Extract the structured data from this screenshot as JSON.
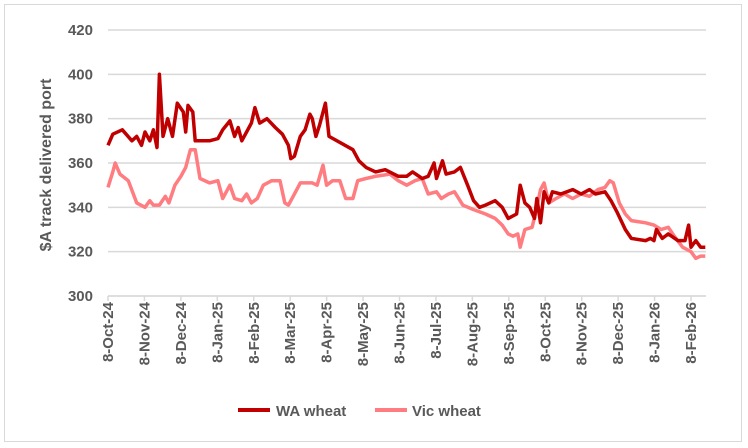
{
  "chart_data": {
    "type": "line",
    "title": "",
    "xlabel": "",
    "ylabel": "$A track delivered port",
    "ylim": [
      300,
      420
    ],
    "yticks": [
      300,
      320,
      340,
      360,
      380,
      400,
      420
    ],
    "xticks": [
      "8-Oct-24",
      "8-Nov-24",
      "8-Dec-24",
      "8-Jan-25",
      "8-Feb-25",
      "8-Mar-25",
      "8-Apr-25",
      "8-May-25",
      "8-Jun-25",
      "8-Jul-25",
      "8-Aug-25",
      "8-Sep-25",
      "8-Oct-25",
      "8-Nov-25",
      "8-Dec-25",
      "8-Jan-26",
      "8-Feb-26"
    ],
    "grid": "horizontal",
    "legend": "bottom",
    "series": [
      {
        "name": "WA wheat",
        "color": "#c00000",
        "points": [
          [
            "2024-10-08",
            368
          ],
          [
            "2024-10-12",
            373
          ],
          [
            "2024-10-20",
            375
          ],
          [
            "2024-10-28",
            370
          ],
          [
            "2024-11-01",
            372
          ],
          [
            "2024-11-05",
            368
          ],
          [
            "2024-11-08",
            374
          ],
          [
            "2024-11-12",
            370
          ],
          [
            "2024-11-15",
            375
          ],
          [
            "2024-11-18",
            367
          ],
          [
            "2024-11-20",
            400
          ],
          [
            "2024-11-23",
            372
          ],
          [
            "2024-11-27",
            380
          ],
          [
            "2024-12-01",
            372
          ],
          [
            "2024-12-05",
            387
          ],
          [
            "2024-12-10",
            383
          ],
          [
            "2024-12-12",
            374
          ],
          [
            "2024-12-14",
            386
          ],
          [
            "2024-12-18",
            383
          ],
          [
            "2024-12-20",
            370
          ],
          [
            "2025-01-01",
            370
          ],
          [
            "2025-01-08",
            371
          ],
          [
            "2025-01-12",
            375
          ],
          [
            "2025-01-18",
            379
          ],
          [
            "2025-01-22",
            372
          ],
          [
            "2025-01-25",
            376
          ],
          [
            "2025-01-28",
            370
          ],
          [
            "2025-02-05",
            378
          ],
          [
            "2025-02-08",
            385
          ],
          [
            "2025-02-12",
            378
          ],
          [
            "2025-02-18",
            380
          ],
          [
            "2025-02-25",
            376
          ],
          [
            "2025-03-03",
            373
          ],
          [
            "2025-03-08",
            368
          ],
          [
            "2025-03-10",
            362
          ],
          [
            "2025-03-13",
            363
          ],
          [
            "2025-03-18",
            372
          ],
          [
            "2025-03-22",
            375
          ],
          [
            "2025-03-26",
            382
          ],
          [
            "2025-03-28",
            380
          ],
          [
            "2025-03-31",
            372
          ],
          [
            "2025-04-03",
            377
          ],
          [
            "2025-04-08",
            387
          ],
          [
            "2025-04-11",
            372
          ],
          [
            "2025-05-01",
            366
          ],
          [
            "2025-05-06",
            361
          ],
          [
            "2025-05-12",
            358
          ],
          [
            "2025-05-20",
            356
          ],
          [
            "2025-05-28",
            357
          ],
          [
            "2025-06-08",
            354
          ],
          [
            "2025-06-15",
            354
          ],
          [
            "2025-06-20",
            356
          ],
          [
            "2025-06-28",
            353
          ],
          [
            "2025-07-03",
            354
          ],
          [
            "2025-07-08",
            360
          ],
          [
            "2025-07-10",
            353
          ],
          [
            "2025-07-15",
            361
          ],
          [
            "2025-07-18",
            355
          ],
          [
            "2025-07-25",
            356
          ],
          [
            "2025-07-30",
            358
          ],
          [
            "2025-08-05",
            350
          ],
          [
            "2025-08-10",
            343
          ],
          [
            "2025-08-15",
            340
          ],
          [
            "2025-08-20",
            341
          ],
          [
            "2025-08-28",
            343
          ],
          [
            "2025-09-03",
            340
          ],
          [
            "2025-09-08",
            335
          ],
          [
            "2025-09-15",
            337
          ],
          [
            "2025-09-18",
            350
          ],
          [
            "2025-09-22",
            342
          ],
          [
            "2025-09-26",
            340
          ],
          [
            "2025-09-30",
            335
          ],
          [
            "2025-10-02",
            344
          ],
          [
            "2025-10-05",
            333
          ],
          [
            "2025-10-08",
            347
          ],
          [
            "2025-10-12",
            342
          ],
          [
            "2025-10-15",
            347
          ],
          [
            "2025-10-22",
            346
          ],
          [
            "2025-11-01",
            348
          ],
          [
            "2025-11-08",
            346
          ],
          [
            "2025-11-15",
            348
          ],
          [
            "2025-11-20",
            346
          ],
          [
            "2025-11-28",
            347
          ],
          [
            "2025-12-03",
            343
          ],
          [
            "2025-12-08",
            338
          ],
          [
            "2025-12-15",
            330
          ],
          [
            "2025-12-20",
            326
          ],
          [
            "2026-01-01",
            325
          ],
          [
            "2026-01-05",
            326
          ],
          [
            "2026-01-08",
            325
          ],
          [
            "2026-01-10",
            330
          ],
          [
            "2026-01-15",
            326
          ],
          [
            "2026-01-20",
            328
          ],
          [
            "2026-01-28",
            325
          ],
          [
            "2026-02-03",
            325
          ],
          [
            "2026-02-06",
            332
          ],
          [
            "2026-02-08",
            322
          ],
          [
            "2026-02-12",
            325
          ],
          [
            "2026-02-16",
            322
          ],
          [
            "2026-02-20",
            322
          ]
        ]
      },
      {
        "name": "Vic wheat",
        "color": "#ff7c80",
        "points": [
          [
            "2024-10-08",
            349
          ],
          [
            "2024-10-12",
            356
          ],
          [
            "2024-10-14",
            360
          ],
          [
            "2024-10-18",
            355
          ],
          [
            "2024-10-25",
            352
          ],
          [
            "2024-11-01",
            342
          ],
          [
            "2024-11-08",
            340
          ],
          [
            "2024-11-12",
            343
          ],
          [
            "2024-11-15",
            341
          ],
          [
            "2024-11-20",
            341
          ],
          [
            "2024-11-25",
            345
          ],
          [
            "2024-11-28",
            342
          ],
          [
            "2024-12-03",
            350
          ],
          [
            "2024-12-08",
            354
          ],
          [
            "2024-12-12",
            358
          ],
          [
            "2024-12-16",
            366
          ],
          [
            "2024-12-20",
            366
          ],
          [
            "2024-12-24",
            353
          ],
          [
            "2025-01-01",
            351
          ],
          [
            "2025-01-08",
            352
          ],
          [
            "2025-01-12",
            344
          ],
          [
            "2025-01-18",
            350
          ],
          [
            "2025-01-22",
            344
          ],
          [
            "2025-01-28",
            343
          ],
          [
            "2025-02-01",
            346
          ],
          [
            "2025-02-05",
            342
          ],
          [
            "2025-02-10",
            344
          ],
          [
            "2025-02-15",
            350
          ],
          [
            "2025-02-22",
            352
          ],
          [
            "2025-03-01",
            352
          ],
          [
            "2025-03-05",
            342
          ],
          [
            "2025-03-08",
            341
          ],
          [
            "2025-03-12",
            345
          ],
          [
            "2025-03-18",
            351
          ],
          [
            "2025-03-28",
            351
          ],
          [
            "2025-04-01",
            350
          ],
          [
            "2025-04-06",
            359
          ],
          [
            "2025-04-09",
            350
          ],
          [
            "2025-04-14",
            352
          ],
          [
            "2025-04-20",
            352
          ],
          [
            "2025-04-25",
            344
          ],
          [
            "2025-05-01",
            344
          ],
          [
            "2025-05-05",
            352
          ],
          [
            "2025-05-12",
            353
          ],
          [
            "2025-05-20",
            354
          ],
          [
            "2025-06-01",
            355
          ],
          [
            "2025-06-08",
            352
          ],
          [
            "2025-06-15",
            350
          ],
          [
            "2025-06-22",
            352
          ],
          [
            "2025-06-28",
            353
          ],
          [
            "2025-07-03",
            346
          ],
          [
            "2025-07-10",
            347
          ],
          [
            "2025-07-14",
            344
          ],
          [
            "2025-07-20",
            346
          ],
          [
            "2025-07-25",
            347
          ],
          [
            "2025-08-01",
            341
          ],
          [
            "2025-08-10",
            339
          ],
          [
            "2025-08-20",
            337
          ],
          [
            "2025-08-28",
            335
          ],
          [
            "2025-09-03",
            332
          ],
          [
            "2025-09-08",
            328
          ],
          [
            "2025-09-12",
            327
          ],
          [
            "2025-09-16",
            328
          ],
          [
            "2025-09-18",
            322
          ],
          [
            "2025-09-22",
            330
          ],
          [
            "2025-09-28",
            331
          ],
          [
            "2025-10-02",
            340
          ],
          [
            "2025-10-05",
            348
          ],
          [
            "2025-10-08",
            351
          ],
          [
            "2025-10-12",
            342
          ],
          [
            "2025-10-18",
            344
          ],
          [
            "2025-10-25",
            346
          ],
          [
            "2025-11-01",
            344
          ],
          [
            "2025-11-08",
            346
          ],
          [
            "2025-11-15",
            345
          ],
          [
            "2025-11-22",
            348
          ],
          [
            "2025-11-28",
            349
          ],
          [
            "2025-12-02",
            352
          ],
          [
            "2025-12-05",
            351
          ],
          [
            "2025-12-10",
            342
          ],
          [
            "2025-12-15",
            337
          ],
          [
            "2025-12-20",
            334
          ],
          [
            "2026-01-01",
            333
          ],
          [
            "2026-01-08",
            332
          ],
          [
            "2026-01-14",
            330
          ],
          [
            "2026-01-20",
            331
          ],
          [
            "2026-01-25",
            327
          ],
          [
            "2026-02-01",
            322
          ],
          [
            "2026-02-08",
            320
          ],
          [
            "2026-02-12",
            317
          ],
          [
            "2026-02-16",
            318
          ],
          [
            "2026-02-20",
            318
          ]
        ]
      }
    ]
  }
}
